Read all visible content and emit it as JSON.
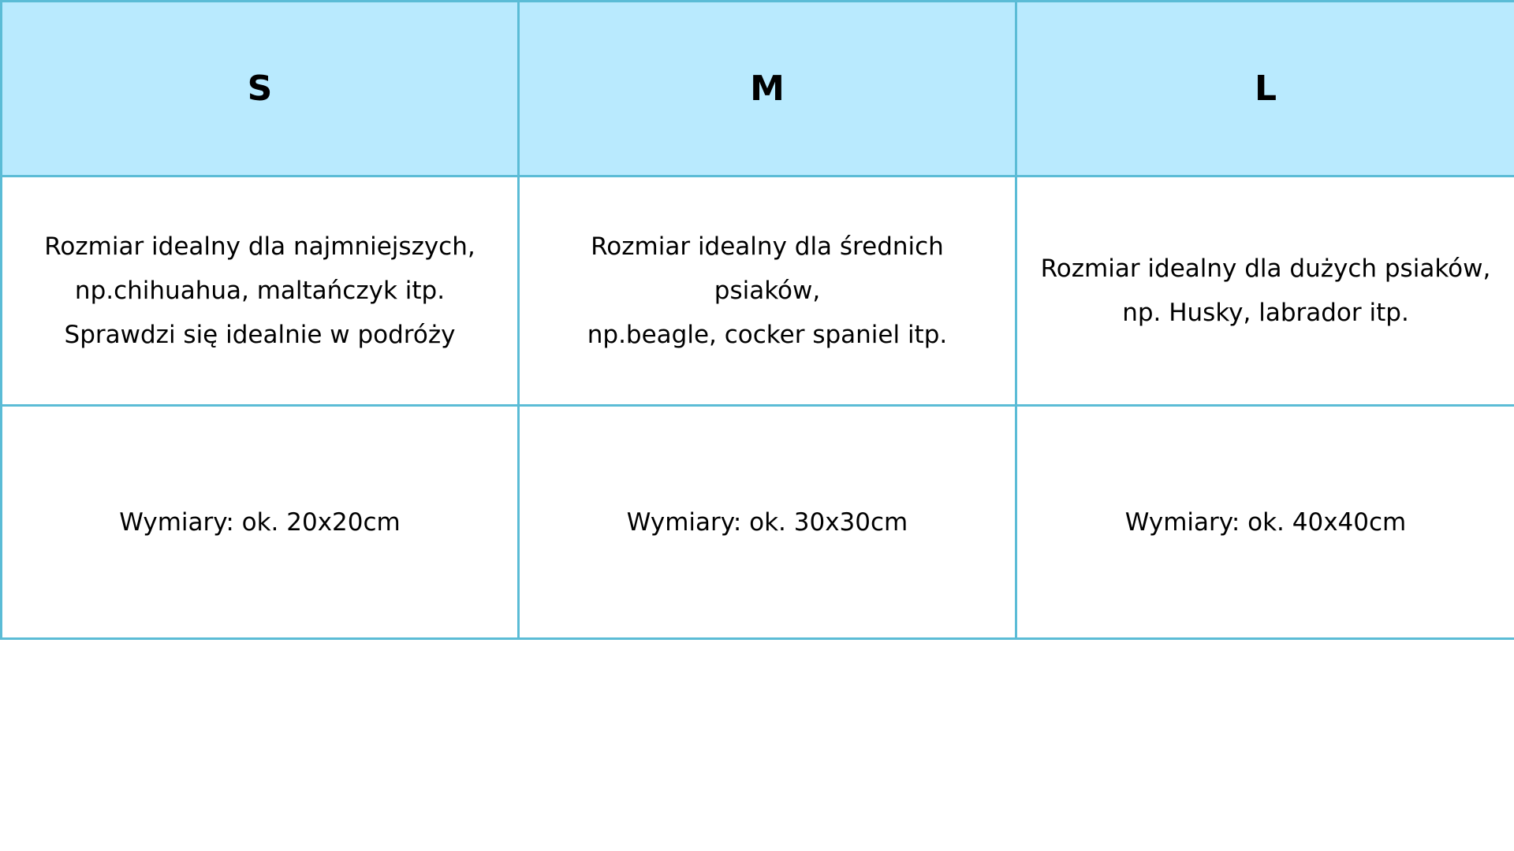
{
  "table": {
    "header_bg": "#b9eafe",
    "border_color": "#5bbcd6",
    "columns": [
      {
        "size": "S",
        "description": [
          "Rozmiar idealny dla najmniejszych,",
          "np.chihuahua, maltańczyk itp.",
          "Sprawdzi się idealnie w podróży"
        ],
        "dimensions": "Wymiary: ok. 20x20cm"
      },
      {
        "size": "M",
        "description": [
          "Rozmiar idealny dla średnich",
          "psiaków,",
          "np.beagle, cocker spaniel itp."
        ],
        "dimensions": "Wymiary: ok. 30x30cm"
      },
      {
        "size": "L",
        "description": [
          "Rozmiar idealny dla dużych psiaków,",
          "np. Husky, labrador itp."
        ],
        "dimensions": "Wymiary: ok. 40x40cm"
      }
    ]
  }
}
